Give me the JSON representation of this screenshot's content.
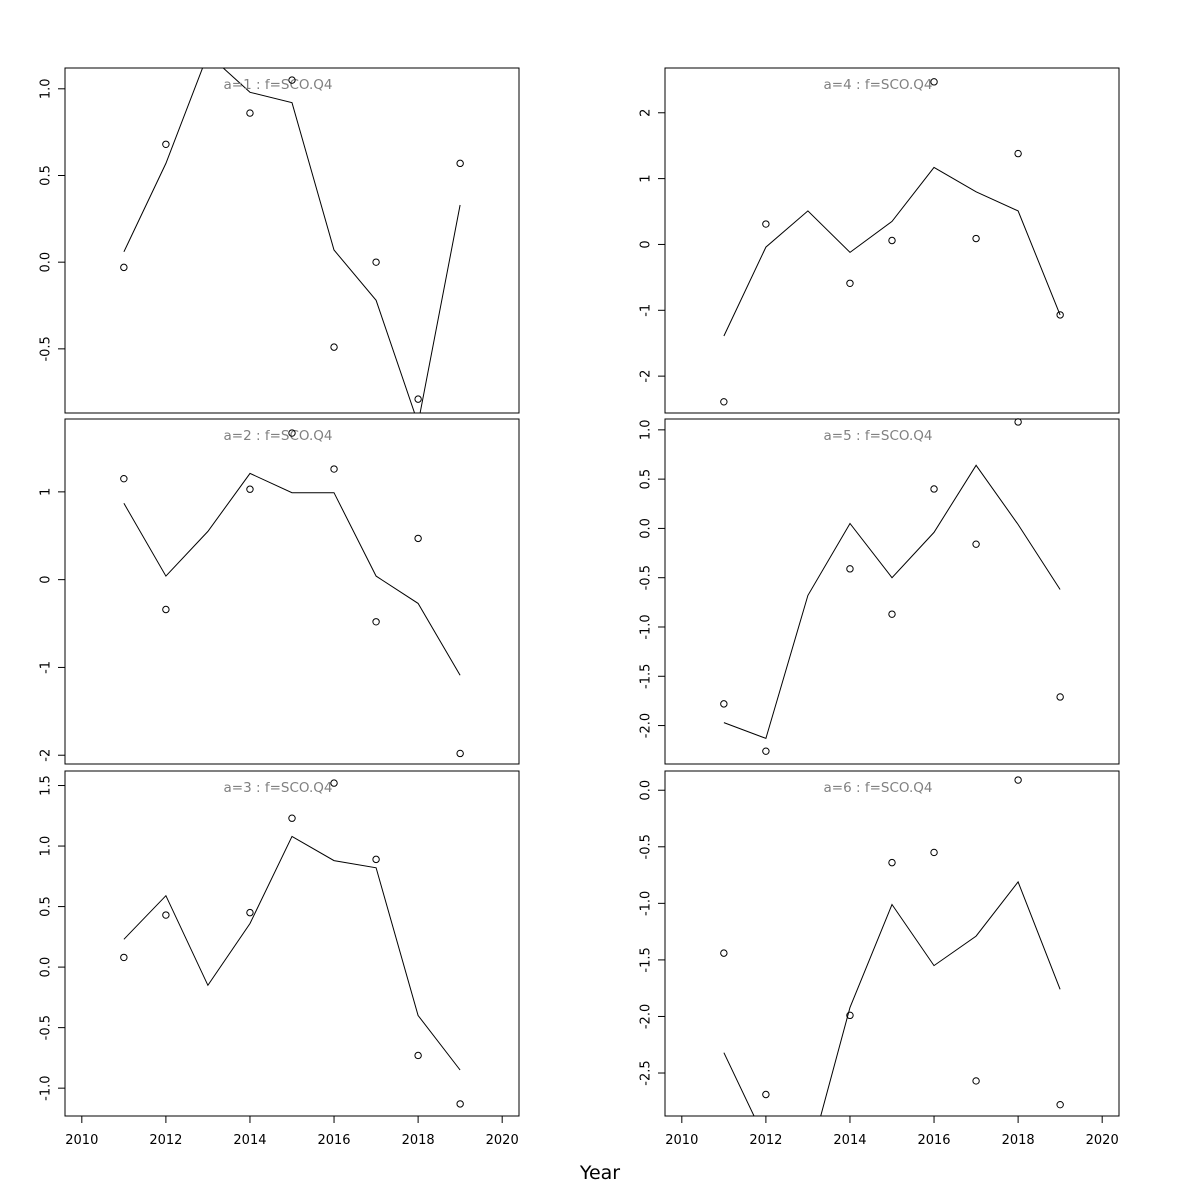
{
  "figure": {
    "xlabel": "Year",
    "line_color": "#000000",
    "point_color": "#000000",
    "title_color": "#808080",
    "frame_color": "#000000"
  },
  "chart_data": [
    {
      "type": "line",
      "title": "a=1  :  f=SCO.Q4",
      "xlim": [
        2009.6,
        2020.4
      ],
      "ylim": [
        -0.87,
        1.12
      ],
      "yticks": [
        -0.5,
        0.0,
        0.5,
        1.0
      ],
      "ytick_labels": [
        "-0.5",
        "0.0",
        "0.5",
        "1.0"
      ],
      "show_xaxis": false,
      "points": {
        "name": "observed",
        "x": [
          2011,
          2012,
          2014,
          2015,
          2016,
          2017,
          2018,
          2019
        ],
        "y": [
          -0.03,
          0.68,
          0.86,
          1.05,
          -0.49,
          0.0,
          -0.79,
          0.57
        ]
      },
      "line": {
        "name": "fitted",
        "x": [
          2011,
          2012,
          2013,
          2014,
          2015,
          2016,
          2017,
          2018,
          2019
        ],
        "y": [
          0.06,
          0.57,
          1.2,
          0.98,
          0.92,
          0.07,
          -0.22,
          -0.93,
          0.33
        ]
      }
    },
    {
      "type": "line",
      "title": "a=4  :  f=SCO.Q4",
      "xlim": [
        2009.6,
        2020.4
      ],
      "ylim": [
        -2.56,
        2.68
      ],
      "yticks": [
        -2,
        -1,
        0,
        1,
        2
      ],
      "ytick_labels": [
        "-2",
        "-1",
        "0",
        "1",
        "2"
      ],
      "show_xaxis": false,
      "points": {
        "name": "observed",
        "x": [
          2011,
          2012,
          2014,
          2015,
          2016,
          2017,
          2018,
          2019
        ],
        "y": [
          -2.39,
          0.31,
          -0.59,
          0.06,
          2.47,
          0.09,
          1.38,
          -1.07
        ]
      },
      "line": {
        "name": "fitted",
        "x": [
          2011,
          2012,
          2013,
          2014,
          2015,
          2016,
          2017,
          2018,
          2019
        ],
        "y": [
          -1.39,
          -0.04,
          0.51,
          -0.12,
          0.35,
          1.17,
          0.8,
          0.51,
          -1.07
        ]
      }
    },
    {
      "type": "line",
      "title": "a=2  :  f=SCO.Q4",
      "xlim": [
        2009.6,
        2020.4
      ],
      "ylim": [
        -2.1,
        1.83
      ],
      "yticks": [
        -2,
        -1,
        0,
        1
      ],
      "ytick_labels": [
        "-2",
        "-1",
        "0",
        "1"
      ],
      "show_xaxis": false,
      "points": {
        "name": "observed",
        "x": [
          2011,
          2012,
          2014,
          2015,
          2016,
          2017,
          2018,
          2019
        ],
        "y": [
          1.15,
          -0.34,
          1.03,
          1.67,
          1.26,
          -0.48,
          0.47,
          -1.98
        ]
      },
      "line": {
        "name": "fitted",
        "x": [
          2011,
          2012,
          2013,
          2014,
          2015,
          2016,
          2017,
          2018,
          2019
        ],
        "y": [
          0.87,
          0.04,
          0.55,
          1.21,
          0.99,
          0.99,
          0.04,
          -0.27,
          -1.09
        ]
      }
    },
    {
      "type": "line",
      "title": "a=5  :  f=SCO.Q4",
      "xlim": [
        2009.6,
        2020.4
      ],
      "ylim": [
        -2.39,
        1.11
      ],
      "yticks": [
        -2.0,
        -1.5,
        -1.0,
        -0.5,
        0.0,
        0.5,
        1.0
      ],
      "ytick_labels": [
        "-2.0",
        "-1.5",
        "-1.0",
        "-0.5",
        "0.0",
        "0.5",
        "1.0"
      ],
      "show_xaxis": false,
      "points": {
        "name": "observed",
        "x": [
          2011,
          2012,
          2014,
          2015,
          2016,
          2017,
          2018,
          2019
        ],
        "y": [
          -1.78,
          -2.26,
          -0.41,
          -0.87,
          0.4,
          -0.16,
          1.08,
          -1.71
        ]
      },
      "line": {
        "name": "fitted",
        "x": [
          2011,
          2012,
          2013,
          2014,
          2015,
          2016,
          2017,
          2018,
          2019
        ],
        "y": [
          -1.97,
          -2.13,
          -0.68,
          0.05,
          -0.5,
          -0.04,
          0.64,
          0.04,
          -0.62
        ]
      }
    },
    {
      "type": "line",
      "title": "a=3  :  f=SCO.Q4",
      "xlim": [
        2009.6,
        2020.4
      ],
      "ylim": [
        -1.23,
        1.62
      ],
      "yticks": [
        -1.0,
        -0.5,
        0.0,
        0.5,
        1.0,
        1.5
      ],
      "ytick_labels": [
        "-1.0",
        "-0.5",
        "0.0",
        "0.5",
        "1.0",
        "1.5"
      ],
      "xticks": [
        2010,
        2012,
        2014,
        2016,
        2018,
        2020
      ],
      "xtick_labels": [
        "2010",
        "2012",
        "2014",
        "2016",
        "2018",
        "2020"
      ],
      "show_xaxis": true,
      "points": {
        "name": "observed",
        "x": [
          2011,
          2012,
          2014,
          2015,
          2016,
          2017,
          2018,
          2019
        ],
        "y": [
          0.08,
          0.43,
          0.45,
          1.23,
          1.52,
          0.89,
          -0.73,
          -1.13
        ]
      },
      "line": {
        "name": "fitted",
        "x": [
          2011,
          2012,
          2013,
          2014,
          2015,
          2016,
          2017,
          2018,
          2019
        ],
        "y": [
          0.23,
          0.59,
          -0.15,
          0.36,
          1.08,
          0.88,
          0.82,
          -0.4,
          -0.85
        ]
      }
    },
    {
      "type": "line",
      "title": "a=6  :  f=SCO.Q4",
      "xlim": [
        2009.6,
        2020.4
      ],
      "ylim": [
        -2.88,
        0.17
      ],
      "yticks": [
        -2.5,
        -2.0,
        -1.5,
        -1.0,
        -0.5,
        0.0
      ],
      "ytick_labels": [
        "-2.5",
        "-2.0",
        "-1.5",
        "-1.0",
        "-0.5",
        "0.0"
      ],
      "xticks": [
        2010,
        2012,
        2014,
        2016,
        2018,
        2020
      ],
      "xtick_labels": [
        "2010",
        "2012",
        "2014",
        "2016",
        "2018",
        "2020"
      ],
      "show_xaxis": true,
      "points": {
        "name": "observed",
        "x": [
          2011,
          2012,
          2014,
          2015,
          2016,
          2017,
          2018,
          2019
        ],
        "y": [
          -1.44,
          -2.69,
          -1.99,
          -0.64,
          -0.55,
          -2.57,
          0.09,
          -2.78
        ]
      },
      "line": {
        "name": "fitted",
        "x": [
          2011,
          2012,
          2013,
          2014,
          2015,
          2016,
          2017,
          2018,
          2019
        ],
        "y": [
          -2.32,
          -3.1,
          -3.3,
          -1.92,
          -1.01,
          -1.55,
          -1.29,
          -0.81,
          -1.76
        ]
      }
    }
  ]
}
